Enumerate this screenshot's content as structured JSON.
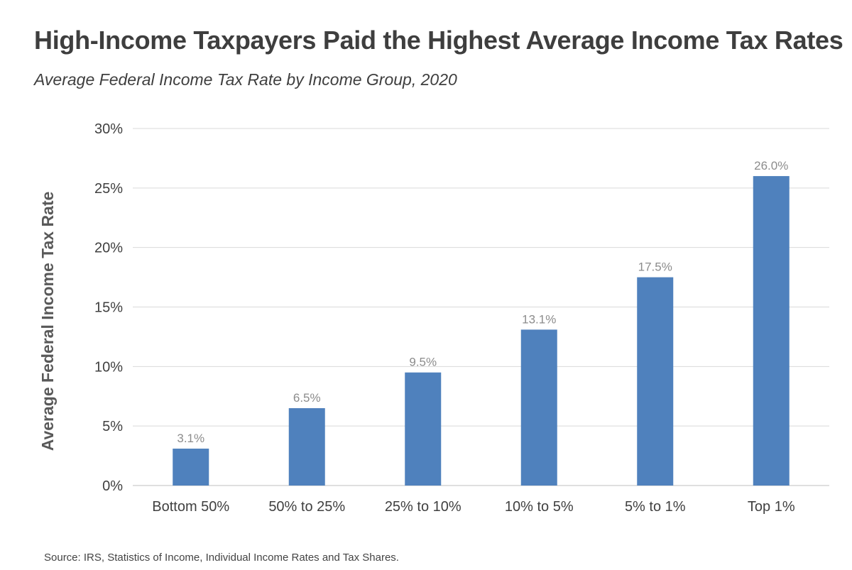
{
  "title": "High-Income Taxpayers Paid the Highest Average Income Tax Rates",
  "subtitle": "Average Federal Income Tax Rate by Income Group, 2020",
  "source": "Source: IRS, Statistics of Income, Individual Income Rates and Tax Shares.",
  "colors": {
    "bar": "#4f81bd",
    "grid": "#d9d9d9",
    "tick_text": "#404040",
    "data_label": "#8c8c8c",
    "ylabel": "#595959"
  },
  "chart_data": {
    "type": "bar",
    "categories": [
      "Bottom 50%",
      "50% to 25%",
      "25% to 10%",
      "10% to 5%",
      "5% to 1%",
      "Top 1%"
    ],
    "values": [
      3.1,
      6.5,
      9.5,
      13.1,
      17.5,
      26.0
    ],
    "data_labels": [
      "3.1%",
      "6.5%",
      "9.5%",
      "13.1%",
      "17.5%",
      "26.0%"
    ],
    "ylabel": "Average Federal Income Tax Rate",
    "xlabel": "",
    "ylim": [
      0,
      30
    ],
    "yticks": [
      0,
      5,
      10,
      15,
      20,
      25,
      30
    ],
    "ytick_labels": [
      "0%",
      "5%",
      "10%",
      "15%",
      "20%",
      "25%",
      "30%"
    ],
    "grid": true
  }
}
